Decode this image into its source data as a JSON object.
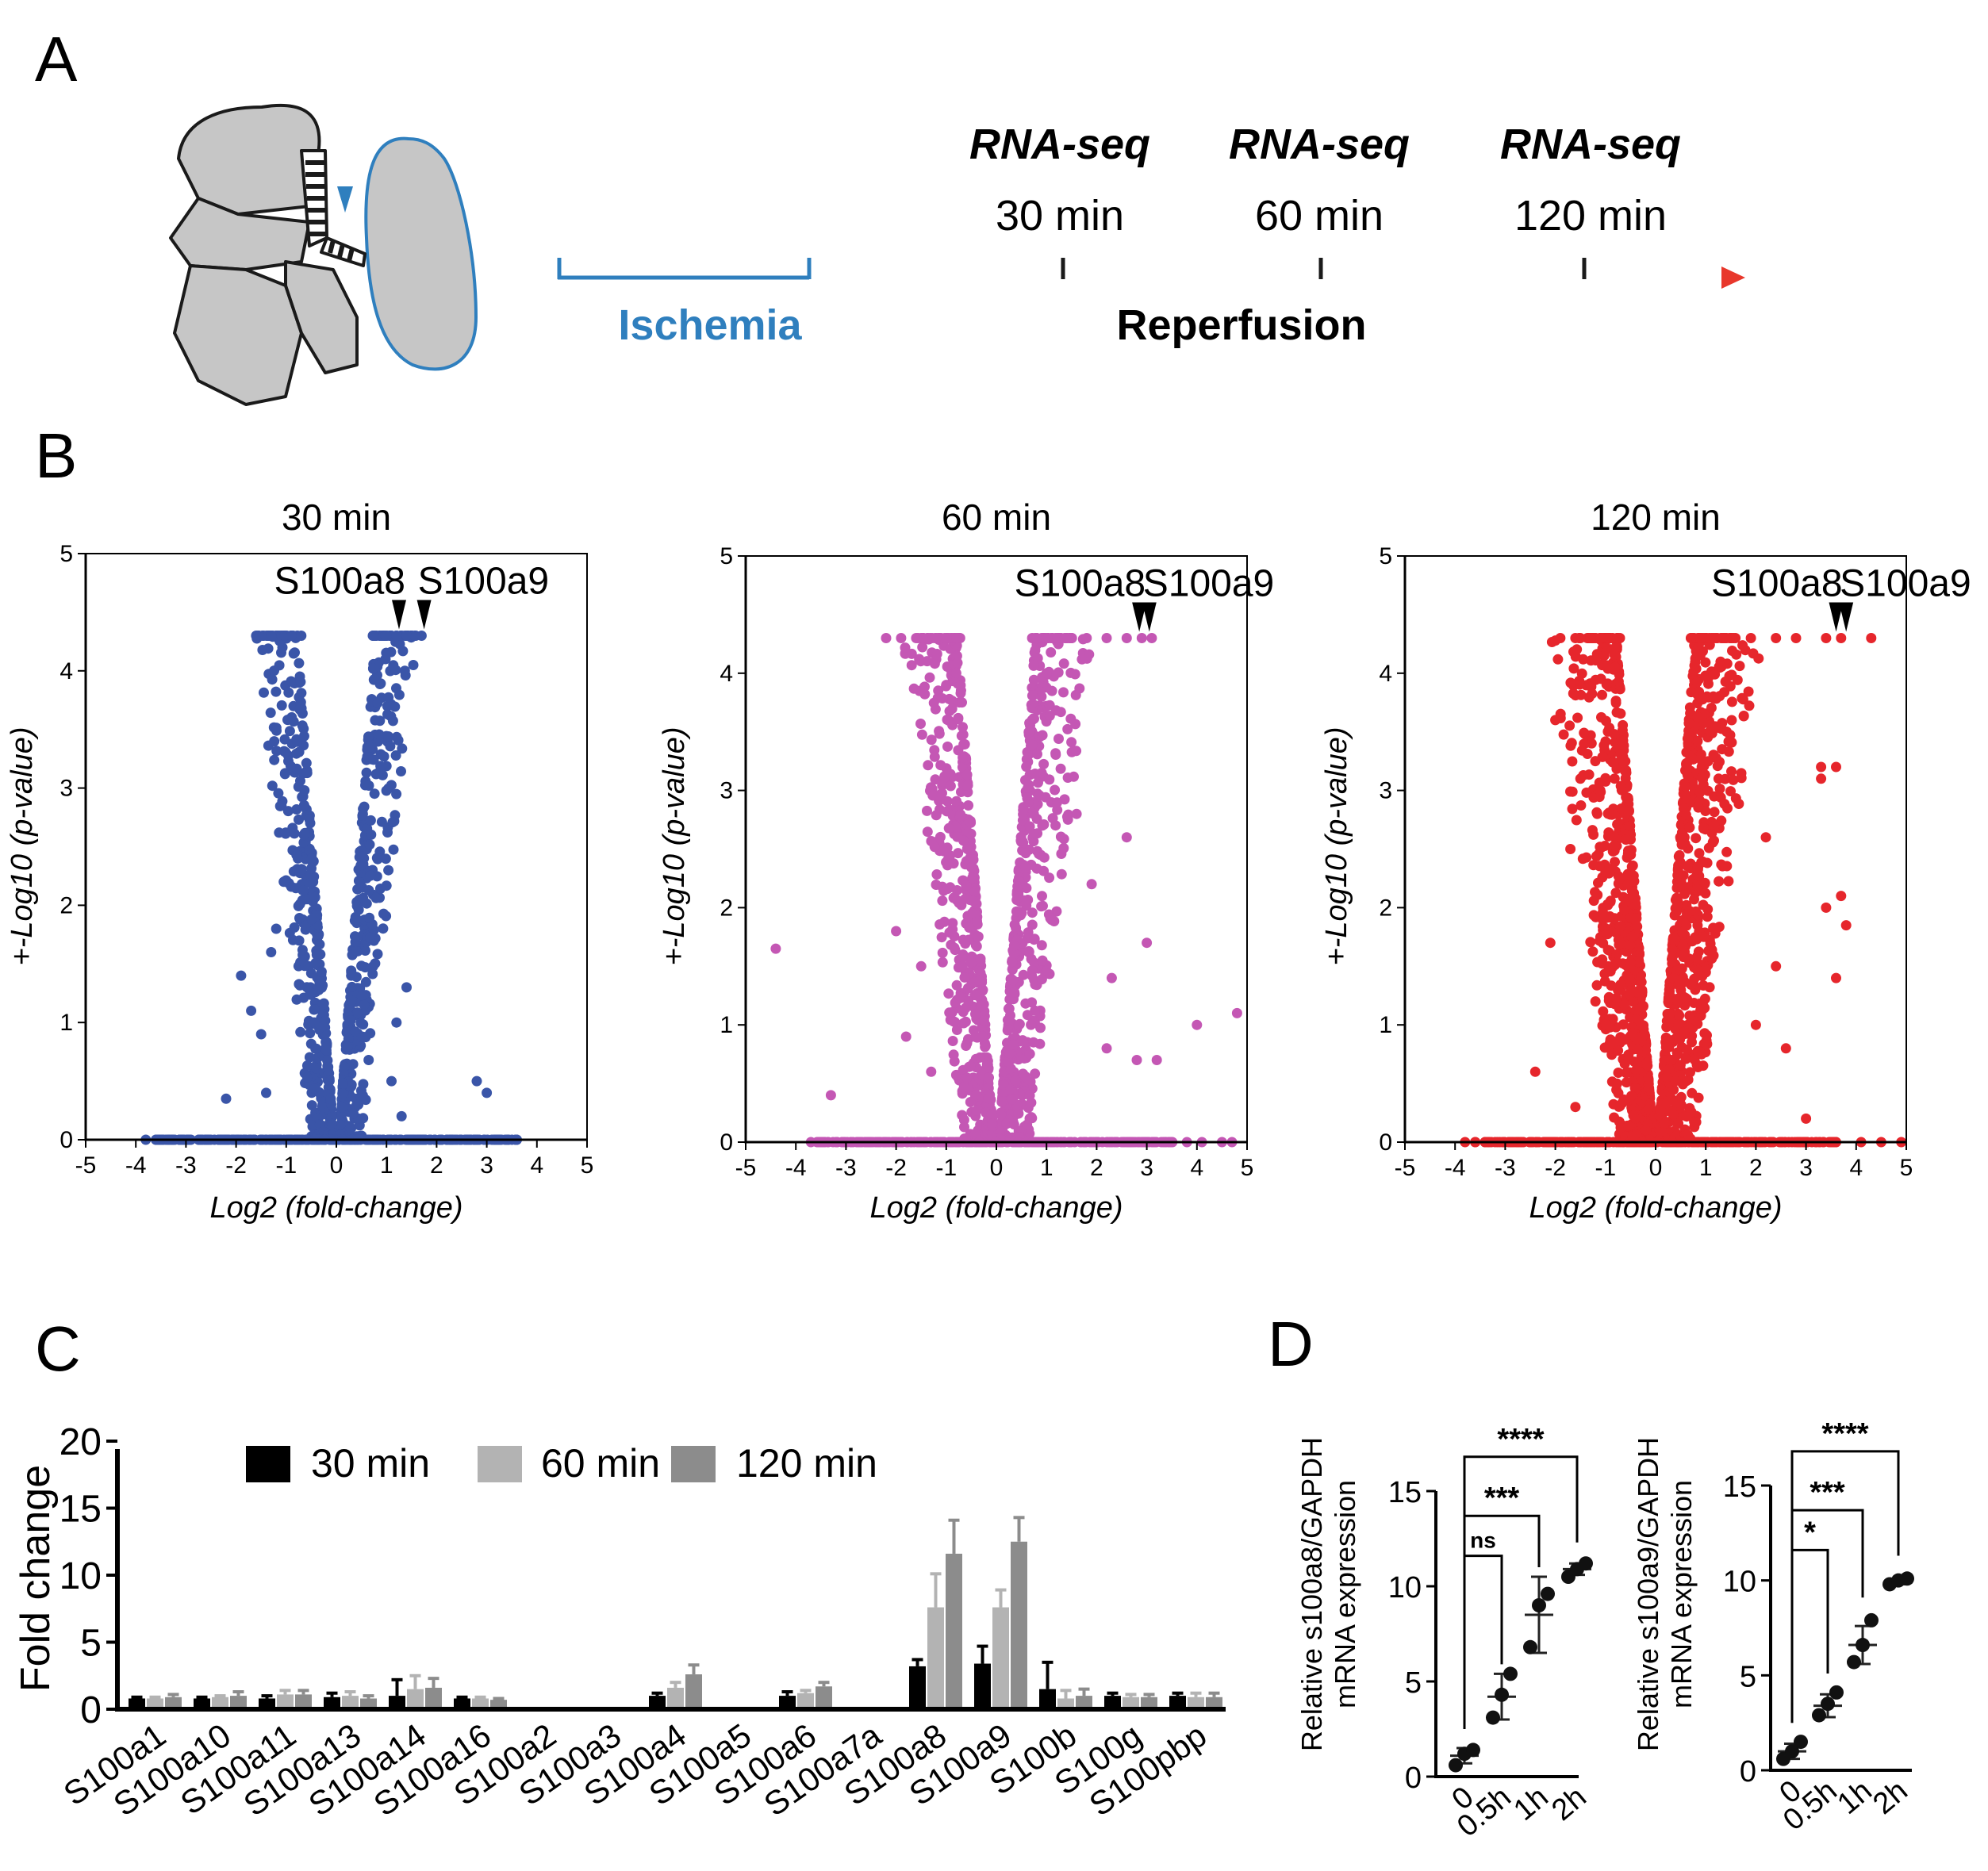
{
  "panels": {
    "a": "A",
    "b": "B",
    "c": "C",
    "d": "D"
  },
  "colors": {
    "ischemia": "#2f7fbe",
    "reperfusion_end": "#e8372b",
    "v30": "#3a55a8",
    "v60": "#c457b4",
    "v120": "#e6262c",
    "c30": "#000000",
    "c60": "#b3b3b3",
    "c120": "#8c8c8c"
  },
  "timeline": {
    "rnaseq": [
      "RNA-seq",
      "RNA-seq",
      "RNA-seq"
    ],
    "times": [
      "30 min",
      "60 min",
      "120 min"
    ],
    "ischemia": "Ischemia",
    "reperfusion": "Reperfusion"
  },
  "chart_data": [
    {
      "type": "scatter",
      "title": "30 min",
      "xlabel": "Log2 (fold-change)",
      "ylabel": "+-Log10 (p-value)",
      "xlim": [
        -5,
        5
      ],
      "ylim": [
        0,
        5
      ],
      "xticks": [
        "-5",
        "-4",
        "-3",
        "-2",
        "-1",
        "0",
        "1",
        "2",
        "3",
        "4",
        "5"
      ],
      "yticks": [
        "0",
        "1",
        "2",
        "3",
        "4",
        "5"
      ],
      "annotations": [
        {
          "label": "S100a8",
          "x": 1.25,
          "y": 4.3
        },
        {
          "label": "S100a9",
          "x": 1.75,
          "y": 4.3
        }
      ],
      "outliers": [
        [
          -3.8,
          0
        ],
        [
          -3.6,
          0
        ],
        [
          -2.2,
          0.35
        ],
        [
          -1.9,
          1.4
        ],
        [
          -1.7,
          1.1
        ],
        [
          -1.5,
          0.9
        ],
        [
          -1.3,
          1.6
        ],
        [
          -1.4,
          0.4
        ],
        [
          -1.2,
          1.8
        ],
        [
          -1.6,
          4.3
        ],
        [
          -1.3,
          4.3
        ],
        [
          -0.9,
          4.3
        ],
        [
          -0.7,
          4.3
        ],
        [
          1.0,
          4.3
        ],
        [
          1.2,
          4.3
        ],
        [
          1.4,
          4.3
        ],
        [
          1.7,
          4.3
        ],
        [
          1.1,
          0.5
        ],
        [
          1.3,
          0.2
        ],
        [
          2.8,
          0.5
        ],
        [
          3.0,
          0.4
        ],
        [
          3.4,
          0
        ],
        [
          3.6,
          0
        ],
        [
          1.4,
          1.3
        ],
        [
          1.2,
          1.0
        ]
      ]
    },
    {
      "type": "scatter",
      "title": "60 min",
      "xlabel": "Log2 (fold-change)",
      "ylabel": "+-Log10 (p-value)",
      "xlim": [
        -5,
        5
      ],
      "ylim": [
        0,
        5
      ],
      "xticks": [
        "-5",
        "-4",
        "-3",
        "-2",
        "-1",
        "0",
        "1",
        "2",
        "3",
        "4",
        "5"
      ],
      "yticks": [
        "0",
        "1",
        "2",
        "3",
        "4",
        "5"
      ],
      "annotations": [
        {
          "label": "S100a8",
          "x": 2.85,
          "y": 4.3
        },
        {
          "label": "S100a9",
          "x": 3.05,
          "y": 4.3
        }
      ],
      "outliers": [
        [
          -4.4,
          1.65
        ],
        [
          -3.7,
          0
        ],
        [
          -3.5,
          0
        ],
        [
          -3.3,
          0.4
        ],
        [
          -2.2,
          4.3
        ],
        [
          -1.9,
          4.3
        ],
        [
          -1.6,
          4.3
        ],
        [
          -1.2,
          4.3
        ],
        [
          -2.0,
          1.8
        ],
        [
          -1.8,
          0.9
        ],
        [
          -1.5,
          1.5
        ],
        [
          -1.3,
          0.6
        ],
        [
          -1.0,
          3.9
        ],
        [
          -0.8,
          4.0
        ],
        [
          1.4,
          4.3
        ],
        [
          1.8,
          4.3
        ],
        [
          2.2,
          4.3
        ],
        [
          2.6,
          4.3
        ],
        [
          2.9,
          4.3
        ],
        [
          3.1,
          4.3
        ],
        [
          1.0,
          4.0
        ],
        [
          0.9,
          3.8
        ],
        [
          2.6,
          2.6
        ],
        [
          3.0,
          1.7
        ],
        [
          2.3,
          1.4
        ],
        [
          2.8,
          0.7
        ],
        [
          3.2,
          0.7
        ],
        [
          4.0,
          1.0
        ],
        [
          4.8,
          1.1
        ],
        [
          3.8,
          0
        ],
        [
          4.1,
          0
        ],
        [
          4.5,
          0
        ],
        [
          4.7,
          0
        ],
        [
          2.2,
          0.8
        ],
        [
          1.9,
          2.2
        ],
        [
          1.6,
          2.8
        ]
      ]
    },
    {
      "type": "scatter",
      "title": "120 min",
      "xlabel": "Log2 (fold-change)",
      "ylabel": "+-Log10 (p-value)",
      "xlim": [
        -5,
        5
      ],
      "ylim": [
        0,
        5
      ],
      "xticks": [
        "-5",
        "-4",
        "-3",
        "-2",
        "-1",
        "0",
        "1",
        "2",
        "3",
        "4",
        "5"
      ],
      "yticks": [
        "0",
        "1",
        "2",
        "3",
        "4",
        "5"
      ],
      "annotations": [
        {
          "label": "S100a8",
          "x": 3.6,
          "y": 4.3
        },
        {
          "label": "S100a9",
          "x": 3.8,
          "y": 4.3
        }
      ],
      "outliers": [
        [
          -3.8,
          0
        ],
        [
          -3.6,
          0
        ],
        [
          -2.1,
          1.7
        ],
        [
          -2.4,
          0.6
        ],
        [
          -1.9,
          4.3
        ],
        [
          -1.6,
          4.3
        ],
        [
          -1.3,
          4.3
        ],
        [
          -1.1,
          4.3
        ],
        [
          -2.0,
          3.6
        ],
        [
          -1.7,
          2.5
        ],
        [
          -1.5,
          3.1
        ],
        [
          -1.2,
          1.2
        ],
        [
          -1.6,
          0.3
        ],
        [
          1.4,
          4.3
        ],
        [
          1.9,
          4.3
        ],
        [
          2.4,
          4.3
        ],
        [
          2.8,
          4.3
        ],
        [
          3.4,
          4.3
        ],
        [
          3.7,
          4.3
        ],
        [
          4.3,
          4.3
        ],
        [
          3.3,
          3.2
        ],
        [
          3.6,
          1.4
        ],
        [
          3.8,
          1.85
        ],
        [
          3.4,
          2.0
        ],
        [
          3.7,
          2.1
        ],
        [
          2.2,
          2.6
        ],
        [
          2.4,
          1.5
        ],
        [
          2.0,
          1.0
        ],
        [
          2.6,
          0.8
        ],
        [
          3.0,
          0.2
        ],
        [
          4.1,
          0
        ],
        [
          4.5,
          0
        ],
        [
          4.9,
          0
        ],
        [
          3.3,
          3.1
        ],
        [
          3.6,
          3.2
        ]
      ]
    },
    {
      "type": "bar",
      "ylabel": "Fold change",
      "ylim": [
        0,
        20
      ],
      "yticks": [
        "0",
        "5",
        "10",
        "15",
        "20"
      ],
      "categories": [
        "S100a1",
        "S100a10",
        "S100a11",
        "S100a13",
        "S100a14",
        "S100a16",
        "S100a2",
        "S100a3",
        "S100a4",
        "S100a5",
        "S100a6",
        "S100a7a",
        "S100a8",
        "S100a9",
        "S100b",
        "S100g",
        "S100pbp"
      ],
      "series": [
        {
          "name": "30 min",
          "values": [
            0.8,
            0.8,
            0.8,
            0.9,
            1.0,
            0.8,
            0,
            0,
            1.0,
            0,
            1.0,
            0,
            3.2,
            3.4,
            1.5,
            1.0,
            1.0
          ],
          "errors": [
            0.1,
            0.1,
            0.2,
            0.3,
            1.2,
            0.1,
            0,
            0,
            0.2,
            0,
            0.3,
            0,
            0.5,
            1.3,
            2.0,
            0.2,
            0.2
          ]
        },
        {
          "name": "60 min",
          "values": [
            0.8,
            0.9,
            1.1,
            1.0,
            1.5,
            0.8,
            0,
            0,
            1.6,
            0,
            1.2,
            0,
            7.6,
            7.6,
            0.8,
            0.9,
            0.9
          ],
          "errors": [
            0.1,
            0.1,
            0.3,
            0.3,
            1.0,
            0.1,
            0,
            0,
            0.4,
            0,
            0.2,
            0,
            2.5,
            1.3,
            0.6,
            0.2,
            0.3
          ]
        },
        {
          "name": "120 min",
          "values": [
            0.9,
            1.0,
            1.1,
            0.8,
            1.6,
            0.7,
            0,
            0,
            2.6,
            0,
            1.7,
            0,
            11.6,
            12.5,
            1.0,
            0.9,
            0.9
          ],
          "errors": [
            0.2,
            0.3,
            0.3,
            0.2,
            0.7,
            0.1,
            0,
            0,
            0.7,
            0,
            0.3,
            0,
            2.5,
            1.8,
            0.5,
            0.2,
            0.3
          ]
        }
      ]
    },
    {
      "type": "scatter",
      "ylabel_line1": "Relative s100a8/GAPDH",
      "ylabel_line2": "mRNA expression",
      "ylim": [
        0,
        15
      ],
      "yticks": [
        "0",
        "5",
        "10",
        "15"
      ],
      "categories": [
        "0",
        "0.5h",
        "1h",
        "2h"
      ],
      "points": [
        [
          0.6,
          1.2,
          1.4
        ],
        [
          3.1,
          4.3,
          5.4
        ],
        [
          6.8,
          9.0,
          9.6
        ],
        [
          10.5,
          10.9,
          11.2
        ]
      ],
      "means": [
        1.1,
        4.2,
        8.5,
        10.9
      ],
      "sds": [
        0.4,
        1.2,
        2.0,
        0.3
      ],
      "comparisons": [
        {
          "from": "0",
          "to": "0.5h",
          "label": "ns"
        },
        {
          "from": "0",
          "to": "1h",
          "label": "***"
        },
        {
          "from": "0",
          "to": "2h",
          "label": "****"
        }
      ]
    },
    {
      "type": "scatter",
      "ylabel_line1": "Relative s100a9/GAPDH",
      "ylabel_line2": "mRNA expression",
      "ylim": [
        0,
        15
      ],
      "yticks": [
        "0",
        "5",
        "10",
        "15"
      ],
      "categories": [
        "0",
        "0.5h",
        "1h",
        "2h"
      ],
      "points": [
        [
          0.6,
          1.0,
          1.5
        ],
        [
          2.9,
          3.5,
          4.1
        ],
        [
          5.7,
          6.6,
          7.9
        ],
        [
          9.8,
          10.0,
          10.1
        ]
      ],
      "means": [
        1.0,
        3.4,
        6.6,
        9.9
      ],
      "sds": [
        0.4,
        0.6,
        1.0,
        0.1
      ],
      "comparisons": [
        {
          "from": "0",
          "to": "0.5h",
          "label": "*"
        },
        {
          "from": "0",
          "to": "1h",
          "label": "***"
        },
        {
          "from": "0",
          "to": "2h",
          "label": "****"
        }
      ]
    }
  ]
}
